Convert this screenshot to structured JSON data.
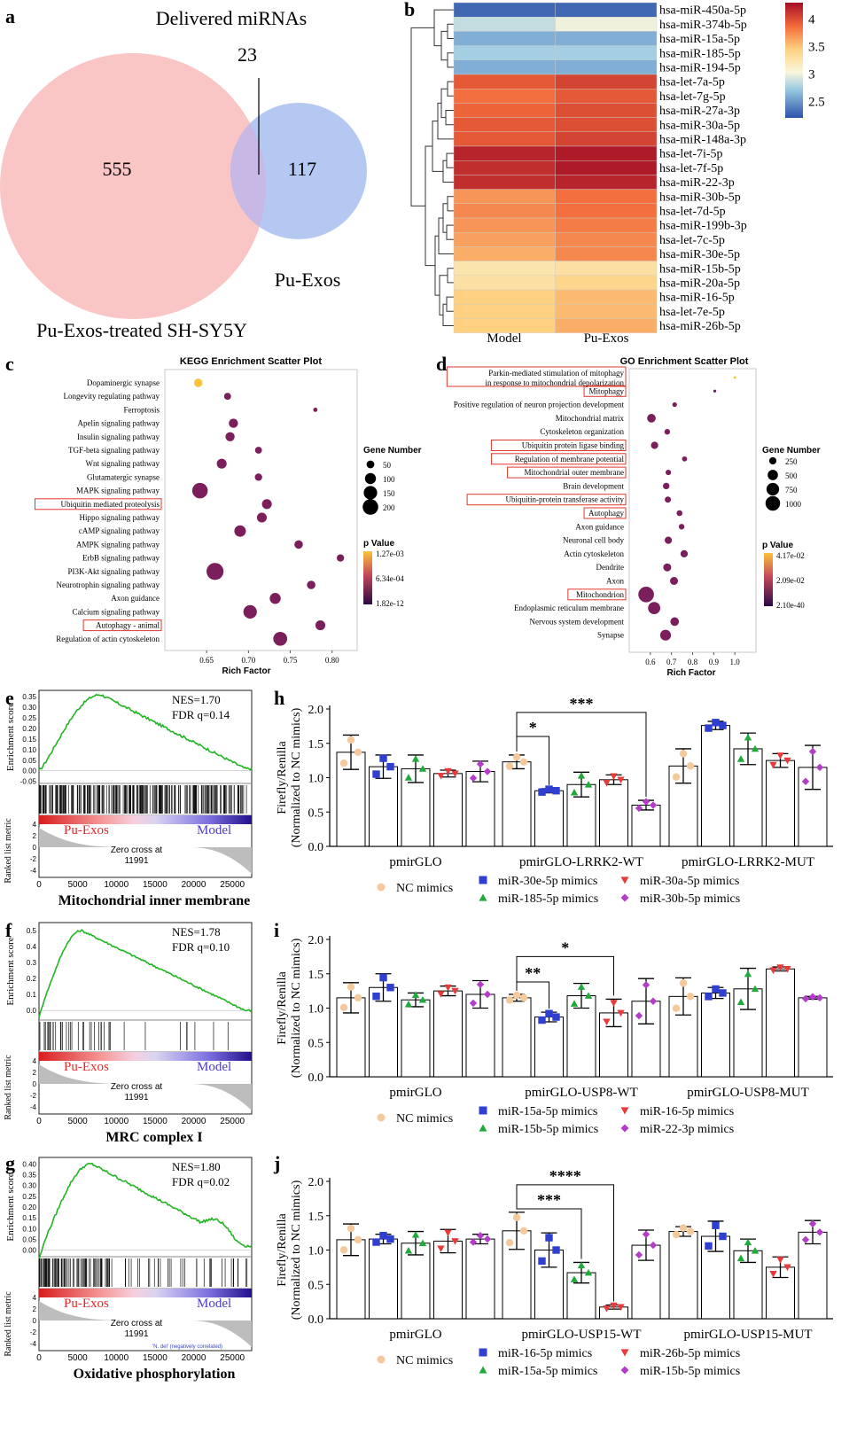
{
  "panel_letters": {
    "a": "a",
    "b": "b",
    "c": "c",
    "d": "d",
    "e": "e",
    "f": "f",
    "g": "g",
    "h": "h",
    "i": "i",
    "j": "j"
  },
  "venn": {
    "title": "Delivered miRNAs",
    "left_count": "555",
    "right_count": "117",
    "overlap_count": "23",
    "left_label": "Pu-Exos-treated SH-SY5Y",
    "right_label": "Pu-Exos",
    "colors": {
      "left": "#f9c5c5",
      "right": "#b4c8f2",
      "overlap": "#c7b8e6"
    }
  },
  "heatmap": {
    "columns": [
      "Model",
      "Pu-Exos"
    ],
    "legend_ticks": [
      "4",
      "3.5",
      "3",
      "2.5"
    ],
    "legend_range": [
      2.2,
      4.3
    ],
    "rows": [
      {
        "name": "hsa-miR-450a-5p",
        "values": [
          2.3,
          2.3
        ]
      },
      {
        "name": "hsa-miR-374b-5p",
        "values": [
          2.85,
          3.0
        ]
      },
      {
        "name": "hsa-miR-15a-5p",
        "values": [
          2.6,
          2.6
        ]
      },
      {
        "name": "hsa-miR-185-5p",
        "values": [
          2.75,
          2.75
        ]
      },
      {
        "name": "hsa-miR-194-5p",
        "values": [
          2.6,
          2.6
        ]
      },
      {
        "name": "hsa-let-7a-5p",
        "values": [
          3.95,
          4.05
        ]
      },
      {
        "name": "hsa-let-7g-5p",
        "values": [
          3.85,
          3.95
        ]
      },
      {
        "name": "hsa-miR-27a-3p",
        "values": [
          3.9,
          4.0
        ]
      },
      {
        "name": "hsa-miR-30a-5p",
        "values": [
          3.95,
          4.0
        ]
      },
      {
        "name": "hsa-miR-148a-3p",
        "values": [
          3.95,
          4.05
        ]
      },
      {
        "name": "hsa-let-7i-5p",
        "values": [
          4.2,
          4.25
        ]
      },
      {
        "name": "hsa-let-7f-5p",
        "values": [
          4.15,
          4.25
        ]
      },
      {
        "name": "hsa-miR-22-3p",
        "values": [
          4.15,
          4.2
        ]
      },
      {
        "name": "hsa-miR-30b-5p",
        "values": [
          3.7,
          3.85
        ]
      },
      {
        "name": "hsa-let-7d-5p",
        "values": [
          3.75,
          3.85
        ]
      },
      {
        "name": "hsa-miR-199b-3p",
        "values": [
          3.7,
          3.8
        ]
      },
      {
        "name": "hsa-let-7c-5p",
        "values": [
          3.65,
          3.75
        ]
      },
      {
        "name": "hsa-miR-30e-5p",
        "values": [
          3.6,
          3.75
        ]
      },
      {
        "name": "hsa-miR-15b-5p",
        "values": [
          3.25,
          3.3
        ]
      },
      {
        "name": "hsa-miR-20a-5p",
        "values": [
          3.3,
          3.4
        ]
      },
      {
        "name": "hsa-miR-16-5p",
        "values": [
          3.45,
          3.55
        ]
      },
      {
        "name": "hsa-let-7e-5p",
        "values": [
          3.45,
          3.55
        ]
      },
      {
        "name": "hsa-miR-26b-5p",
        "values": [
          3.45,
          3.6
        ]
      }
    ]
  },
  "kegg": {
    "title": "KEGG Enrichment Scatter Plot",
    "xlabel": "Rich Factor",
    "xlim": [
      0.6,
      0.83
    ],
    "xticks": [
      "0.65",
      "0.70",
      "0.75",
      "0.80"
    ],
    "size_legend_title": "Gene Number",
    "size_legend": [
      "50",
      "100",
      "150",
      "200"
    ],
    "p_legend_title": "p Value",
    "p_legend": [
      "1.27e-03",
      "6.34e-04",
      "1.82e-12"
    ],
    "terms": [
      {
        "name": "Dopaminergic synapse",
        "rich": 0.64,
        "genes": 60,
        "p": 0.95,
        "boxed": false
      },
      {
        "name": "Longevity regulating pathway",
        "rich": 0.675,
        "genes": 40,
        "p": 0.35,
        "boxed": false
      },
      {
        "name": "Ferroptosis",
        "rich": 0.78,
        "genes": 15,
        "p": 0.3,
        "boxed": false
      },
      {
        "name": "Apelin signaling pathway",
        "rich": 0.682,
        "genes": 70,
        "p": 0.05,
        "boxed": false
      },
      {
        "name": "Insulin signaling pathway",
        "rich": 0.678,
        "genes": 70,
        "p": 0.05,
        "boxed": false
      },
      {
        "name": "TGF-beta signaling pathway",
        "rich": 0.712,
        "genes": 40,
        "p": 0.05,
        "boxed": false
      },
      {
        "name": "Wnt signaling pathway",
        "rich": 0.668,
        "genes": 80,
        "p": 0.05,
        "boxed": false
      },
      {
        "name": "Glutamatergic synapse",
        "rich": 0.712,
        "genes": 45,
        "p": 0.05,
        "boxed": false
      },
      {
        "name": "MAPK signaling pathway",
        "rich": 0.642,
        "genes": 200,
        "p": 0.02,
        "boxed": false
      },
      {
        "name": "Ubiquitin mediated proteolysis",
        "rich": 0.722,
        "genes": 80,
        "p": 0.05,
        "boxed": true
      },
      {
        "name": "Hippo signaling pathway",
        "rich": 0.716,
        "genes": 80,
        "p": 0.05,
        "boxed": false
      },
      {
        "name": "cAMP signaling pathway",
        "rich": 0.69,
        "genes": 110,
        "p": 0.03,
        "boxed": false
      },
      {
        "name": "AMPK signaling pathway",
        "rich": 0.76,
        "genes": 60,
        "p": 0.05,
        "boxed": false
      },
      {
        "name": "ErbB signaling pathway",
        "rich": 0.81,
        "genes": 45,
        "p": 0.05,
        "boxed": false
      },
      {
        "name": "PI3K-Akt signaling pathway",
        "rich": 0.66,
        "genes": 240,
        "p": 0.02,
        "boxed": false
      },
      {
        "name": "Neurotrophin signaling pathway",
        "rich": 0.775,
        "genes": 60,
        "p": 0.05,
        "boxed": false
      },
      {
        "name": "Axon guidance",
        "rich": 0.732,
        "genes": 100,
        "p": 0.05,
        "boxed": false
      },
      {
        "name": "Calcium signaling pathway",
        "rich": 0.702,
        "genes": 150,
        "p": 0.03,
        "boxed": false
      },
      {
        "name": "Autophagy - animal",
        "rich": 0.786,
        "genes": 80,
        "p": 0.05,
        "boxed": true
      },
      {
        "name": "Regulation of actin cytoskeleton",
        "rich": 0.738,
        "genes": 160,
        "p": 0.03,
        "boxed": false
      }
    ]
  },
  "go": {
    "title": "GO Enrichment Scatter Plot",
    "xlabel": "Rich Factor",
    "xlim": [
      0.5,
      1.1
    ],
    "xticks": [
      "0.6",
      "0.7",
      "0.8",
      "0.9",
      "1.0"
    ],
    "size_legend_title": "Gene Number",
    "size_legend": [
      "250",
      "500",
      "750",
      "1000"
    ],
    "p_legend_title": "p Value",
    "p_legend": [
      "4.17e-02",
      "2.09e-02",
      "2.10e-40"
    ],
    "terms": [
      {
        "name": "Parkin-mediated stimulation of mitophagy",
        "name2": "in response to mitochondrial depolarization",
        "rich": 1.0,
        "genes": 20,
        "p": 0.95,
        "boxed": true
      },
      {
        "name": "Mitophagy",
        "rich": 0.905,
        "genes": 40,
        "p": 0.35,
        "boxed": true
      },
      {
        "name": "Positive regulation of neuron projection development",
        "rich": 0.715,
        "genes": 100,
        "p": 0.1,
        "boxed": false
      },
      {
        "name": "Mitochondrial matrix",
        "rich": 0.605,
        "genes": 350,
        "p": 0.05,
        "boxed": false
      },
      {
        "name": "Cytoskeleton organization",
        "rich": 0.68,
        "genes": 150,
        "p": 0.05,
        "boxed": false
      },
      {
        "name": "Ubiquitin protein ligase binding",
        "rich": 0.62,
        "genes": 250,
        "p": 0.05,
        "boxed": true
      },
      {
        "name": "Regulation of membrane potential",
        "rich": 0.762,
        "genes": 120,
        "p": 0.05,
        "boxed": true
      },
      {
        "name": "Mitochondrial outer membrane",
        "rich": 0.685,
        "genes": 140,
        "p": 0.05,
        "boxed": true
      },
      {
        "name": "Brain development",
        "rich": 0.675,
        "genes": 200,
        "p": 0.05,
        "boxed": false
      },
      {
        "name": "Ubiquitin-protein transferase activity",
        "rich": 0.683,
        "genes": 180,
        "p": 0.05,
        "boxed": true
      },
      {
        "name": "Autophagy",
        "rich": 0.738,
        "genes": 160,
        "p": 0.05,
        "boxed": true
      },
      {
        "name": "Axon guidance",
        "rich": 0.748,
        "genes": 150,
        "p": 0.05,
        "boxed": false
      },
      {
        "name": "Neuronal cell body",
        "rich": 0.685,
        "genes": 250,
        "p": 0.05,
        "boxed": false
      },
      {
        "name": "Actin cytoskeleton",
        "rich": 0.76,
        "genes": 250,
        "p": 0.05,
        "boxed": false
      },
      {
        "name": "Dendrite",
        "rich": 0.68,
        "genes": 300,
        "p": 0.05,
        "boxed": false
      },
      {
        "name": "Axon",
        "rich": 0.712,
        "genes": 300,
        "p": 0.05,
        "boxed": false
      },
      {
        "name": "Mitochondrion",
        "rich": 0.58,
        "genes": 1150,
        "p": 0.01,
        "boxed": true
      },
      {
        "name": "Endoplasmic reticulum membrane",
        "rich": 0.618,
        "genes": 700,
        "p": 0.02,
        "boxed": false
      },
      {
        "name": "Nervous system development",
        "rich": 0.715,
        "genes": 350,
        "p": 0.05,
        "boxed": false
      },
      {
        "name": "Synapse",
        "rich": 0.672,
        "genes": 550,
        "p": 0.05,
        "boxed": false
      }
    ]
  },
  "gsea": [
    {
      "nes": "NES=1.70",
      "fdr": "FDR q=0.14",
      "title": "Mitochondrial inner membrane",
      "ylabel_es": "Enrichment score",
      "ylabel_rank": "Ranked list metric",
      "es_ticks": [
        "0.35",
        "0.30",
        "0.25",
        "0.20",
        "0.15",
        "0.10",
        "0.05",
        "0.00",
        "-0.05"
      ],
      "es_range": [
        -0.06,
        0.38
      ],
      "peak_x": 8000,
      "peak": 0.36,
      "end": 0.01,
      "x_max": 27500,
      "xticks": [
        "0",
        "5000",
        "10000",
        "15000",
        "20000",
        "25000"
      ],
      "rank_ticks": [
        "4",
        "2",
        "0",
        "-2",
        "-4"
      ],
      "left_group": "Pu-Exos",
      "right_group": "Model",
      "zero_cross": "Zero cross at",
      "zero_cross_value": "11991",
      "hits_density": "dense",
      "footnote": ""
    },
    {
      "nes": "NES=1.78",
      "fdr": "FDR q=0.10",
      "title": "MRC complex I",
      "ylabel_es": "Enrichment score",
      "ylabel_rank": "Ranked list metric",
      "es_ticks": [
        "0.5",
        "0.4",
        "0.3",
        "0.2",
        "0.1",
        "0.0"
      ],
      "es_range": [
        -0.06,
        0.55
      ],
      "peak_x": 5500,
      "peak": 0.5,
      "end": 0.0,
      "x_max": 27500,
      "xticks": [
        "0",
        "5000",
        "10000",
        "15000",
        "20000",
        "25000"
      ],
      "rank_ticks": [
        "4",
        "2",
        "0",
        "-2",
        "-4"
      ],
      "left_group": "Pu-Exos",
      "right_group": "Model",
      "zero_cross": "Zero cross at",
      "zero_cross_value": "11991",
      "hits_density": "sparse",
      "footnote": ""
    },
    {
      "nes": "NES=1.80",
      "fdr": "FDR q=0.02",
      "title": "Oxidative phosphorylation",
      "ylabel_es": "Enrichment score",
      "ylabel_rank": "Ranked list metric",
      "es_ticks": [
        "0.40",
        "0.35",
        "0.30",
        "0.25",
        "0.20",
        "0.15",
        "0.10",
        "0.05",
        "0.00"
      ],
      "es_range": [
        -0.03,
        0.43
      ],
      "peak_x": 6800,
      "peak": 0.4,
      "end": 0.02,
      "x_max": 27500,
      "xticks": [
        "0",
        "5000",
        "10000",
        "15000",
        "20000",
        "25000"
      ],
      "rank_ticks": [
        "4",
        "2",
        "0",
        "-2",
        "-4"
      ],
      "left_group": "Pu-Exos",
      "right_group": "Model",
      "zero_cross": "Zero cross at",
      "zero_cross_value": "11991",
      "hits_density": "medium",
      "footnote": "'N. del' (negatively correlated)"
    }
  ],
  "chart_data": [
    {
      "type": "bar",
      "id": "h",
      "ylabel": "Firefly/Renilla",
      "ylabel2": "(Normalized to NC mimics)",
      "ylim": [
        0,
        2.0
      ],
      "yticks": [
        "0.0",
        "0.5",
        "1.0",
        "1.5",
        "2.0"
      ],
      "categories": [
        "pmirGLO",
        "pmirGLO-LRRK2-WT",
        "pmirGLO-LRRK2-MUT"
      ],
      "series": [
        {
          "name": "NC  mimics",
          "color": "#f5c99b",
          "marker": "circle",
          "values": [
            1.37,
            1.23,
            1.17
          ],
          "sd": [
            0.25,
            0.1,
            0.25
          ]
        },
        {
          "name": "miR-30e-5p mimics",
          "color": "#2f3fd0",
          "marker": "square",
          "values": [
            1.16,
            0.81,
            1.76
          ],
          "sd": [
            0.17,
            0.03,
            0.06
          ]
        },
        {
          "name": "miR-185-5p mimics",
          "color": "#1faa3a",
          "marker": "triangle",
          "values": [
            1.13,
            0.9,
            1.42
          ],
          "sd": [
            0.2,
            0.18,
            0.23
          ]
        },
        {
          "name": "miR-30a-5p mimics",
          "color": "#e83a3a",
          "marker": "triangle-down",
          "values": [
            1.06,
            0.97,
            1.25
          ],
          "sd": [
            0.05,
            0.07,
            0.1
          ]
        },
        {
          "name": "miR-30b-5p mimics",
          "color": "#b43cc8",
          "marker": "diamond",
          "values": [
            1.09,
            0.6,
            1.15
          ],
          "sd": [
            0.15,
            0.07,
            0.32
          ]
        }
      ],
      "significance": [
        {
          "label": "*",
          "group": 1,
          "from": 0,
          "to": 1,
          "y": 1.6
        },
        {
          "label": "***",
          "group": 1,
          "from": 0,
          "to": 4,
          "y": 1.95
        }
      ]
    },
    {
      "type": "bar",
      "id": "i",
      "ylabel": "Firefly/Renilla",
      "ylabel2": "(Normalized to NC mimics)",
      "ylim": [
        0,
        2.0
      ],
      "yticks": [
        "0.0",
        "0.5",
        "1.0",
        "1.5",
        "2.0"
      ],
      "categories": [
        "pmirGLO",
        "pmirGLO-USP8-WT",
        "pmirGLO-USP8-MUT"
      ],
      "series": [
        {
          "name": "NC mimics",
          "color": "#f5c99b",
          "marker": "circle",
          "values": [
            1.15,
            1.15,
            1.17
          ],
          "sd": [
            0.22,
            0.05,
            0.27
          ]
        },
        {
          "name": "miR-15a-5p mimics",
          "color": "#2f3fd0",
          "marker": "square",
          "values": [
            1.3,
            0.87,
            1.22
          ],
          "sd": [
            0.2,
            0.07,
            0.08
          ]
        },
        {
          "name": "miR-15b-5p mimics",
          "color": "#1faa3a",
          "marker": "triangle",
          "values": [
            1.12,
            1.18,
            1.28
          ],
          "sd": [
            0.1,
            0.18,
            0.3
          ]
        },
        {
          "name": "miR-16-5p mimics",
          "color": "#e83a3a",
          "marker": "triangle-down",
          "values": [
            1.25,
            0.93,
            1.57
          ],
          "sd": [
            0.07,
            0.2,
            0.03
          ]
        },
        {
          "name": "miR-22-3p mimics",
          "color": "#b43cc8",
          "marker": "diamond",
          "values": [
            1.2,
            1.1,
            1.15
          ],
          "sd": [
            0.2,
            0.33,
            0.02
          ]
        }
      ],
      "significance": [
        {
          "label": "**",
          "group": 1,
          "from": 0,
          "to": 1,
          "y": 1.38
        },
        {
          "label": "*",
          "group": 1,
          "from": 0,
          "to": 3,
          "y": 1.75
        }
      ]
    },
    {
      "type": "bar",
      "id": "j",
      "ylabel": "Firefly/Renilla",
      "ylabel2": "(Normalized to NC mimics)",
      "ylim": [
        0,
        2.0
      ],
      "yticks": [
        "0.0",
        "0.5",
        "1.0",
        "1.5",
        "2.0"
      ],
      "categories": [
        "pmirGLO",
        "pmirGLO-USP15-WT",
        "pmirGLO-USP15-MUT"
      ],
      "series": [
        {
          "name": "NC  mimics",
          "color": "#f5c99b",
          "marker": "circle",
          "values": [
            1.15,
            1.28,
            1.27
          ],
          "sd": [
            0.23,
            0.27,
            0.07
          ]
        },
        {
          "name": "miR-16-5p mimics",
          "color": "#2f3fd0",
          "marker": "square",
          "values": [
            1.16,
            1.0,
            1.2
          ],
          "sd": [
            0.07,
            0.25,
            0.22
          ]
        },
        {
          "name": "miR-15a-5p mimics",
          "color": "#1faa3a",
          "marker": "triangle",
          "values": [
            1.1,
            0.67,
            0.99
          ],
          "sd": [
            0.17,
            0.15,
            0.17
          ]
        },
        {
          "name": "miR-26b-5p mimics",
          "color": "#e83a3a",
          "marker": "triangle-down",
          "values": [
            1.13,
            0.17,
            0.75
          ],
          "sd": [
            0.17,
            0.03,
            0.15
          ]
        },
        {
          "name": "miR-15b-5p mimics",
          "color": "#b43cc8",
          "marker": "diamond",
          "values": [
            1.16,
            1.07,
            1.26
          ],
          "sd": [
            0.07,
            0.22,
            0.17
          ]
        }
      ],
      "significance": [
        {
          "label": "***",
          "group": 1,
          "from": 0,
          "to": 2,
          "y": 1.6
        },
        {
          "label": "****",
          "group": 1,
          "from": 0,
          "to": 3,
          "y": 1.95
        }
      ]
    }
  ]
}
